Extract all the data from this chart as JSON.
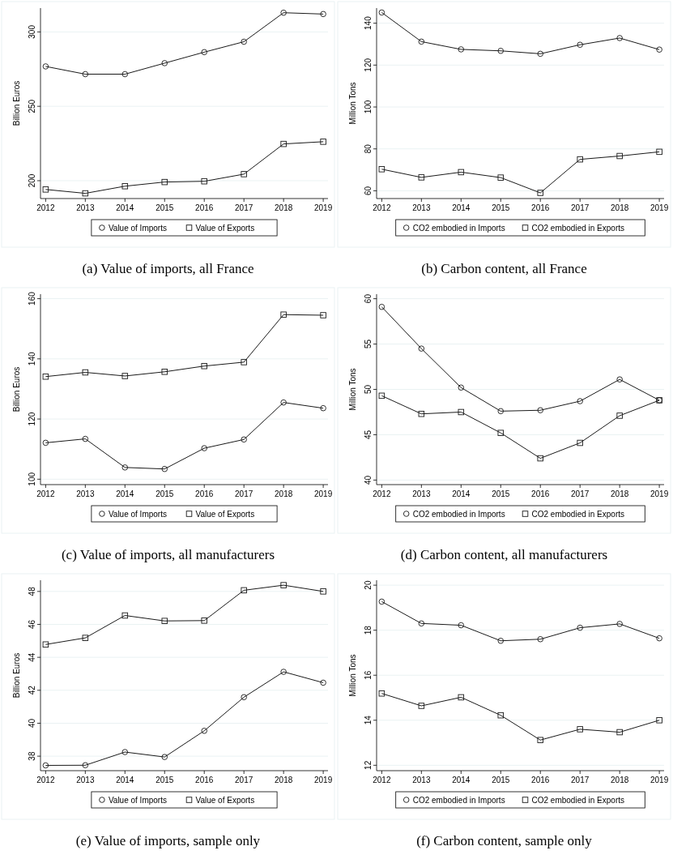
{
  "chart_data": [
    {
      "type": "line",
      "title": "(a) Value of imports, all France",
      "ylabel": "Billion Euros",
      "x": [
        2012,
        2013,
        2014,
        2015,
        2016,
        2017,
        2018,
        2019
      ],
      "xlim": [
        2011.87,
        2019.12
      ],
      "xticks": [
        2012,
        2013,
        2014,
        2015,
        2016,
        2017,
        2018,
        2019
      ],
      "ylim": [
        188,
        316
      ],
      "yticks": [
        200,
        250,
        300
      ],
      "grid": "y",
      "legend": "bottom",
      "series": [
        {
          "name": "Value of Imports",
          "color": "#1a1a1a",
          "marker": "circle",
          "values": [
            276.8,
            271.6,
            271.6,
            279,
            286.4,
            293.4,
            312.9,
            312
          ]
        },
        {
          "name": "Value of Exports",
          "color": "#1a1a1a",
          "marker": "square",
          "values": [
            194.1,
            191.5,
            196.3,
            199.1,
            199.6,
            204.4,
            224.7,
            226.2
          ]
        }
      ]
    },
    {
      "type": "line",
      "title": "(b) Carbon content, all France",
      "ylabel": "Million Tons",
      "x": [
        2012,
        2013,
        2014,
        2015,
        2016,
        2017,
        2018,
        2019
      ],
      "xlim": [
        2011.87,
        2019.12
      ],
      "xticks": [
        2012,
        2013,
        2014,
        2015,
        2016,
        2017,
        2018,
        2019
      ],
      "ylim": [
        56.3,
        147.2
      ],
      "yticks": [
        60,
        80,
        100,
        120,
        140
      ],
      "grid": "y",
      "legend": "bottom",
      "series": [
        {
          "name": "CO2 embodied in Imports",
          "color": "#1a1a1a",
          "marker": "circle",
          "values": [
            145.1,
            131.2,
            127.5,
            126.8,
            125.4,
            129.7,
            132.9,
            127.4
          ]
        },
        {
          "name": "CO2 embodied in Exports",
          "color": "#1a1a1a",
          "marker": "square",
          "values": [
            70.3,
            66.4,
            68.9,
            66.3,
            59,
            75,
            76.6,
            78.6
          ]
        }
      ]
    },
    {
      "type": "line",
      "title": "(c) Value of imports, all manufacturers",
      "ylabel": "Billion Euros",
      "x": [
        2012,
        2013,
        2014,
        2015,
        2016,
        2017,
        2018,
        2019
      ],
      "xlim": [
        2011.87,
        2019.12
      ],
      "xticks": [
        2012,
        2013,
        2014,
        2015,
        2016,
        2017,
        2018,
        2019
      ],
      "ylim": [
        98.2,
        161.5
      ],
      "yticks": [
        100,
        120,
        140,
        160
      ],
      "grid": "y",
      "legend": "bottom",
      "series": [
        {
          "name": "Value of Imports",
          "color": "#1a1a1a",
          "marker": "circle",
          "values": [
            112.1,
            113.4,
            103.9,
            103.4,
            110.3,
            113.2,
            125.5,
            123.6
          ]
        },
        {
          "name": "Value of Exports",
          "color": "#1a1a1a",
          "marker": "square",
          "values": [
            134.1,
            135.5,
            134.3,
            135.7,
            137.6,
            138.9,
            154.7,
            154.5
          ]
        }
      ]
    },
    {
      "type": "line",
      "title": "(d) Carbon content, all manufacturers",
      "ylabel": "Million Tons",
      "x": [
        2012,
        2013,
        2014,
        2015,
        2016,
        2017,
        2018,
        2019
      ],
      "xlim": [
        2011.87,
        2019.12
      ],
      "xticks": [
        2012,
        2013,
        2014,
        2015,
        2016,
        2017,
        2018,
        2019
      ],
      "ylim": [
        39.5,
        60.5
      ],
      "yticks": [
        40,
        45,
        50,
        55,
        60
      ],
      "grid": "y",
      "legend": "bottom",
      "series": [
        {
          "name": "CO2 embodied in Imports",
          "color": "#1a1a1a",
          "marker": "circle",
          "values": [
            59.1,
            54.5,
            50.2,
            47.6,
            47.7,
            48.7,
            51.1,
            48.8
          ]
        },
        {
          "name": "CO2 embodied in Exports",
          "color": "#1a1a1a",
          "marker": "square",
          "values": [
            49.3,
            47.3,
            47.5,
            45.2,
            42.4,
            44.1,
            47.1,
            48.8
          ]
        }
      ]
    },
    {
      "type": "line",
      "title": "(e) Value of imports, sample only",
      "ylabel": "Billion Euros",
      "x": [
        2012,
        2013,
        2014,
        2015,
        2016,
        2017,
        2018,
        2019
      ],
      "xlim": [
        2011.87,
        2019.12
      ],
      "xticks": [
        2012,
        2013,
        2014,
        2015,
        2016,
        2017,
        2018,
        2019
      ],
      "ylim": [
        37.12,
        48.68
      ],
      "yticks": [
        38,
        40,
        42,
        44,
        46,
        48
      ],
      "grid": "y",
      "legend": "bottom",
      "series": [
        {
          "name": "Value of Imports",
          "color": "#1a1a1a",
          "marker": "circle",
          "values": [
            37.44,
            37.45,
            38.25,
            37.95,
            39.54,
            41.58,
            43.12,
            42.46
          ]
        },
        {
          "name": "Value of Exports",
          "color": "#1a1a1a",
          "marker": "square",
          "values": [
            44.78,
            45.18,
            46.54,
            46.21,
            46.23,
            48.07,
            48.38,
            48
          ]
        }
      ]
    },
    {
      "type": "line",
      "title": "(f) Carbon content, sample only",
      "ylabel": "Million Tons",
      "x": [
        2012,
        2013,
        2014,
        2015,
        2016,
        2017,
        2018,
        2019
      ],
      "xlim": [
        2011.87,
        2019.12
      ],
      "xticks": [
        2012,
        2013,
        2014,
        2015,
        2016,
        2017,
        2018,
        2019
      ],
      "ylim": [
        11.76,
        20.22
      ],
      "yticks": [
        12,
        14,
        16,
        18,
        20
      ],
      "grid": "y",
      "legend": "bottom",
      "series": [
        {
          "name": "CO2 embodied in Imports",
          "color": "#1a1a1a",
          "marker": "circle",
          "values": [
            19.27,
            18.3,
            18.22,
            17.53,
            17.6,
            18.11,
            18.28,
            17.64
          ]
        },
        {
          "name": "CO2 embodied in Exports",
          "color": "#1a1a1a",
          "marker": "square",
          "values": [
            15.19,
            14.64,
            15.02,
            14.22,
            13.12,
            13.6,
            13.47,
            14
          ]
        }
      ]
    }
  ]
}
